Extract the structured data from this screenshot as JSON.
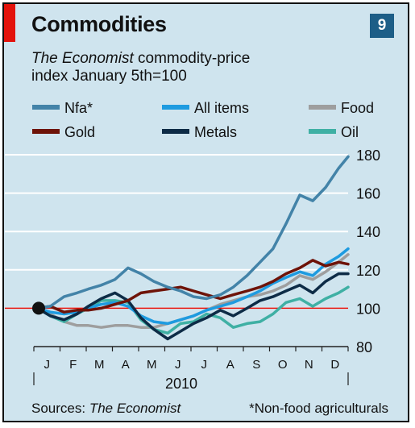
{
  "header": {
    "title": "Commodities",
    "chart_number": "9",
    "subtitle_source": "The Economist",
    "subtitle_rest": " commodity-price",
    "subtitle_line2": "index January 5th=100"
  },
  "footer": {
    "sources_label": "Sources: ",
    "sources_value": "The Economist",
    "footnote": "*Non-food agriculturals"
  },
  "colors": {
    "Nfa*": "#4383a8",
    "All items": "#1e9be0",
    "Food": "#9e9e9e",
    "Gold": "#6e1308",
    "Metals": "#0d2b46",
    "Oil": "#3fb0a4",
    "baseline": "#e3120b",
    "grid": "#ffffff"
  },
  "chart_data": {
    "type": "line",
    "title": "Commodities",
    "subtitle": "The Economist commodity-price index January 5th=100",
    "xlabel": "2010",
    "x_ticks": [
      "J",
      "F",
      "M",
      "A",
      "M",
      "J",
      "J",
      "A",
      "S",
      "O",
      "N",
      "D"
    ],
    "x_range": [
      "2010-01-01",
      "2010-12-31"
    ],
    "ylim": [
      80,
      180
    ],
    "y_ticks": [
      80,
      100,
      120,
      140,
      160,
      180
    ],
    "y_axis_side": "right",
    "reference_line": 100,
    "start_marker": {
      "x": "2010-01-05",
      "y": 100
    },
    "grid": true,
    "legend_position": "top",
    "series": [
      {
        "name": "Nfa*",
        "x": [
          "2010-01-05",
          "2010-01-20",
          "2010-02-05",
          "2010-02-20",
          "2010-03-05",
          "2010-03-20",
          "2010-04-05",
          "2010-04-20",
          "2010-05-05",
          "2010-05-20",
          "2010-06-05",
          "2010-06-20",
          "2010-07-05",
          "2010-07-20",
          "2010-08-05",
          "2010-08-20",
          "2010-09-05",
          "2010-09-20",
          "2010-10-05",
          "2010-10-20",
          "2010-11-05",
          "2010-11-20",
          "2010-12-05",
          "2010-12-20",
          "2010-12-31"
        ],
        "values": [
          100,
          101,
          106,
          108,
          110,
          112,
          115,
          121,
          118,
          114,
          111,
          109,
          106,
          105,
          107,
          111,
          117,
          124,
          131,
          144,
          159,
          156,
          163,
          173,
          179
        ]
      },
      {
        "name": "All items",
        "x": [
          "2010-01-05",
          "2010-01-20",
          "2010-02-05",
          "2010-02-20",
          "2010-03-05",
          "2010-03-20",
          "2010-04-05",
          "2010-04-20",
          "2010-05-05",
          "2010-05-20",
          "2010-06-05",
          "2010-06-20",
          "2010-07-05",
          "2010-07-20",
          "2010-08-05",
          "2010-08-20",
          "2010-09-05",
          "2010-09-20",
          "2010-10-05",
          "2010-10-20",
          "2010-11-05",
          "2010-11-20",
          "2010-12-05",
          "2010-12-20",
          "2010-12-31"
        ],
        "values": [
          100,
          98,
          97,
          98,
          100,
          102,
          103,
          101,
          96,
          93,
          92,
          94,
          96,
          99,
          101,
          103,
          106,
          109,
          113,
          116,
          119,
          117,
          123,
          127,
          131
        ]
      },
      {
        "name": "Food",
        "x": [
          "2010-01-05",
          "2010-01-20",
          "2010-02-05",
          "2010-02-20",
          "2010-03-05",
          "2010-03-20",
          "2010-04-05",
          "2010-04-20",
          "2010-05-05",
          "2010-05-20",
          "2010-06-05",
          "2010-06-20",
          "2010-07-05",
          "2010-07-20",
          "2010-08-05",
          "2010-08-20",
          "2010-09-05",
          "2010-09-20",
          "2010-10-05",
          "2010-10-20",
          "2010-11-05",
          "2010-11-20",
          "2010-12-05",
          "2010-12-20",
          "2010-12-31"
        ],
        "values": [
          100,
          97,
          93,
          91,
          91,
          90,
          91,
          91,
          90,
          90,
          92,
          94,
          96,
          99,
          102,
          104,
          106,
          107,
          109,
          112,
          117,
          115,
          119,
          124,
          128
        ]
      },
      {
        "name": "Gold",
        "x": [
          "2010-01-05",
          "2010-01-20",
          "2010-02-05",
          "2010-02-20",
          "2010-03-05",
          "2010-03-20",
          "2010-04-05",
          "2010-04-20",
          "2010-05-05",
          "2010-05-20",
          "2010-06-05",
          "2010-06-20",
          "2010-07-05",
          "2010-07-20",
          "2010-08-05",
          "2010-08-20",
          "2010-09-05",
          "2010-09-20",
          "2010-10-05",
          "2010-10-20",
          "2010-11-05",
          "2010-11-20",
          "2010-12-05",
          "2010-12-20",
          "2010-12-31"
        ],
        "values": [
          100,
          101,
          98,
          99,
          99,
          100,
          102,
          104,
          108,
          109,
          110,
          111,
          109,
          107,
          105,
          107,
          109,
          111,
          114,
          118,
          121,
          125,
          122,
          124,
          123
        ]
      },
      {
        "name": "Metals",
        "x": [
          "2010-01-05",
          "2010-01-20",
          "2010-02-05",
          "2010-02-20",
          "2010-03-05",
          "2010-03-20",
          "2010-04-05",
          "2010-04-20",
          "2010-05-05",
          "2010-05-20",
          "2010-06-05",
          "2010-06-20",
          "2010-07-05",
          "2010-07-20",
          "2010-08-05",
          "2010-08-20",
          "2010-09-05",
          "2010-09-20",
          "2010-10-05",
          "2010-10-20",
          "2010-11-05",
          "2010-11-20",
          "2010-12-05",
          "2010-12-20",
          "2010-12-31"
        ],
        "values": [
          100,
          96,
          94,
          97,
          101,
          105,
          108,
          104,
          95,
          89,
          84,
          88,
          92,
          95,
          99,
          96,
          100,
          104,
          106,
          109,
          112,
          108,
          114,
          118,
          118
        ]
      },
      {
        "name": "Oil",
        "x": [
          "2010-01-05",
          "2010-01-20",
          "2010-02-05",
          "2010-02-20",
          "2010-03-05",
          "2010-03-20",
          "2010-04-05",
          "2010-04-20",
          "2010-05-05",
          "2010-05-20",
          "2010-06-05",
          "2010-06-20",
          "2010-07-05",
          "2010-07-20",
          "2010-08-05",
          "2010-08-20",
          "2010-09-05",
          "2010-09-20",
          "2010-10-05",
          "2010-10-20",
          "2010-11-05",
          "2010-11-20",
          "2010-12-05",
          "2010-12-20",
          "2010-12-31"
        ],
        "values": [
          100,
          96,
          93,
          97,
          100,
          104,
          104,
          103,
          94,
          89,
          87,
          92,
          93,
          97,
          95,
          90,
          92,
          93,
          97,
          103,
          105,
          101,
          105,
          108,
          111
        ]
      }
    ]
  }
}
